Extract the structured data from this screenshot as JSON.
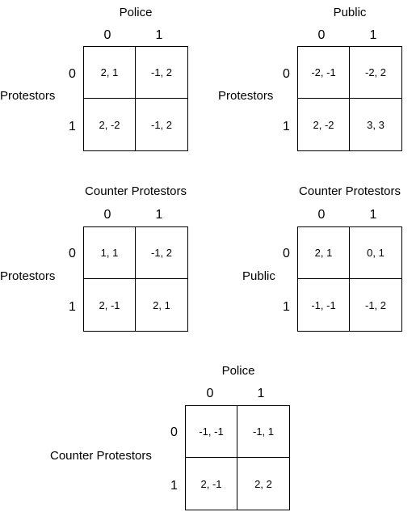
{
  "games": [
    {
      "col_player": "Police",
      "row_player": "Protestors",
      "col_labels": [
        "0",
        "1"
      ],
      "row_labels": [
        "0",
        "1"
      ],
      "cells": [
        [
          "2, 1",
          "-1, 2"
        ],
        [
          "2, -2",
          "-1, 2"
        ]
      ]
    },
    {
      "col_player": "Public",
      "row_player": "Protestors",
      "col_labels": [
        "0",
        "1"
      ],
      "row_labels": [
        "0",
        "1"
      ],
      "cells": [
        [
          "-2, -1",
          "-2, 2"
        ],
        [
          "2, -2",
          "3, 3"
        ]
      ]
    },
    {
      "col_player": "Counter Protestors",
      "row_player": "Protestors",
      "col_labels": [
        "0",
        "1"
      ],
      "row_labels": [
        "0",
        "1"
      ],
      "cells": [
        [
          "1, 1",
          "-1, 2"
        ],
        [
          "2, -1",
          "2, 1"
        ]
      ]
    },
    {
      "col_player": "Counter Protestors",
      "row_player": "Public",
      "col_labels": [
        "0",
        "1"
      ],
      "row_labels": [
        "0",
        "1"
      ],
      "cells": [
        [
          "2, 1",
          "0, 1"
        ],
        [
          "-1, -1",
          "-1, 2"
        ]
      ]
    },
    {
      "col_player": "Police",
      "row_player": "Counter Protestors",
      "col_labels": [
        "0",
        "1"
      ],
      "row_labels": [
        "0",
        "1"
      ],
      "cells": [
        [
          "-1, -1",
          "-1, 1"
        ],
        [
          "2, -1",
          "2, 2"
        ]
      ]
    }
  ]
}
